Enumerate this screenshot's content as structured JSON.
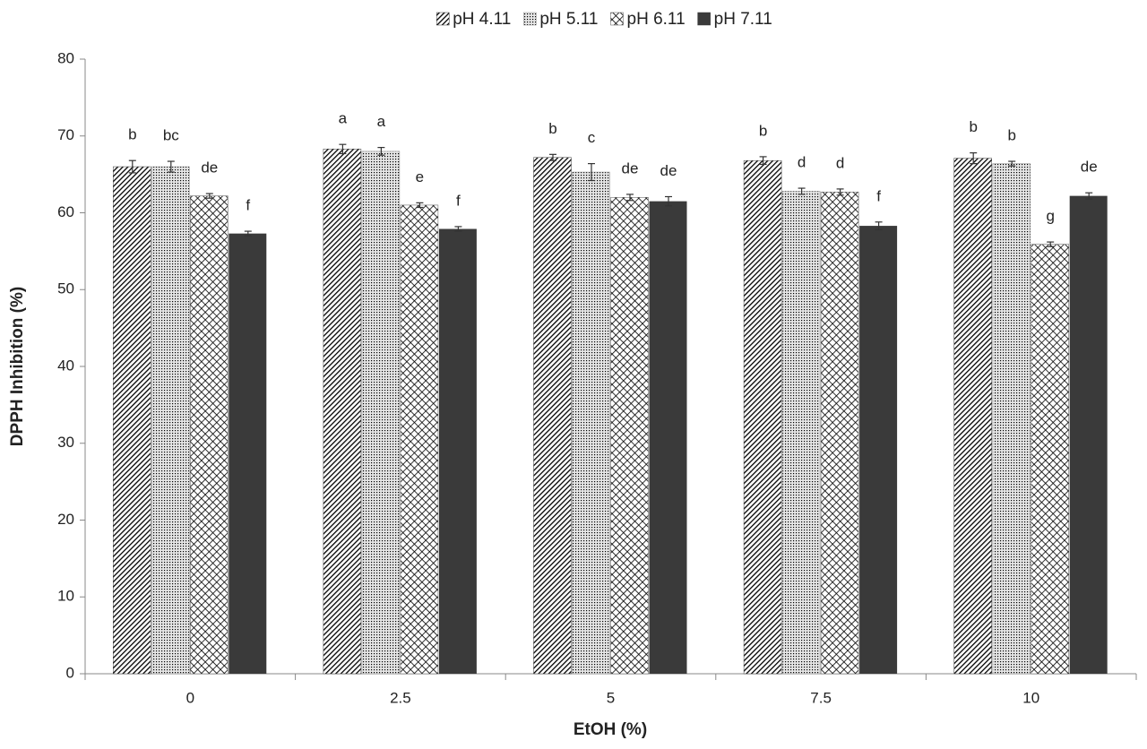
{
  "chart_data": {
    "type": "bar",
    "x_label": "EtOH (%)",
    "y_label": "DPPH Inhibition (%)",
    "categories": [
      "0",
      "2.5",
      "5",
      "7.5",
      "10"
    ],
    "ylim": [
      0,
      80
    ],
    "yticks": [
      0,
      10,
      20,
      30,
      40,
      50,
      60,
      70,
      80
    ],
    "legend": "top",
    "series": [
      {
        "name": "pH 4.11",
        "color": "#3a3a3a",
        "pattern": "diagonal",
        "values": [
          66.0,
          68.3,
          67.2,
          66.8,
          67.1
        ],
        "errors": [
          0.8,
          0.6,
          0.4,
          0.5,
          0.7
        ],
        "significance": [
          "b",
          "a",
          "b",
          "b",
          "b"
        ]
      },
      {
        "name": "pH 5.11",
        "color": "#8a8a8a",
        "pattern": "dots",
        "values": [
          66.0,
          68.0,
          65.3,
          62.8,
          66.4
        ],
        "errors": [
          0.7,
          0.5,
          1.1,
          0.4,
          0.3
        ],
        "significance": [
          "bc",
          "a",
          "c",
          "d",
          "b"
        ]
      },
      {
        "name": "pH 6.11",
        "color": "#555555",
        "pattern": "crosshatch",
        "values": [
          62.2,
          61.0,
          62.0,
          62.7,
          55.9
        ],
        "errors": [
          0.3,
          0.3,
          0.4,
          0.4,
          0.3
        ],
        "significance": [
          "de",
          "e",
          "de",
          "d",
          "g"
        ]
      },
      {
        "name": "pH 7.11",
        "color": "#3a3a3a",
        "pattern": "solid",
        "values": [
          57.3,
          57.9,
          61.5,
          58.3,
          62.2
        ],
        "errors": [
          0.3,
          0.3,
          0.6,
          0.5,
          0.4
        ],
        "significance": [
          "f",
          "f",
          "de",
          "f",
          "de"
        ]
      }
    ]
  }
}
